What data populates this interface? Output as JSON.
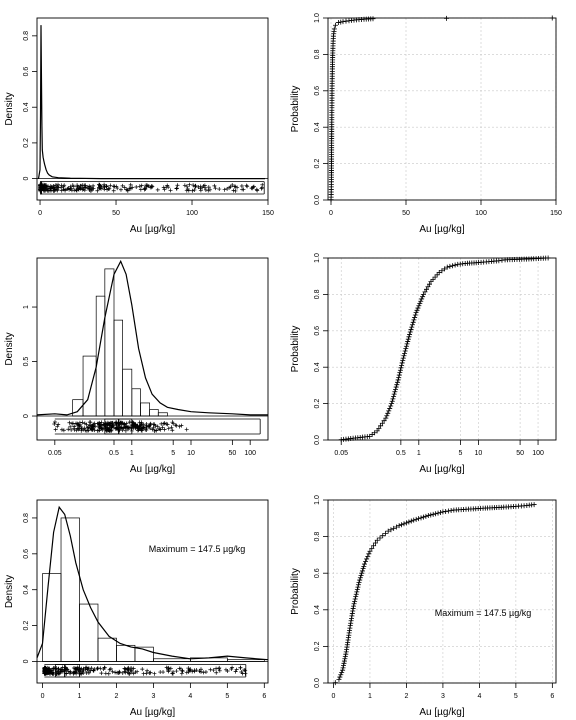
{
  "chart_data": [
    {
      "type": "histogram-density-boxplot",
      "panel": "raw-density",
      "xlabel": "Au [µg/kg]",
      "ylabel": "Density",
      "xlim": [
        -2,
        150
      ],
      "ylim": [
        -0.12,
        0.9
      ],
      "xticks": [
        0,
        50,
        100,
        150
      ],
      "yticks": [
        0,
        0.2,
        0.4,
        0.6,
        0.8
      ],
      "density_curve": {
        "x": [
          -1,
          0,
          0.3,
          0.6,
          0.9,
          1.2,
          1.5,
          2,
          2.5,
          3,
          4,
          5,
          6,
          8,
          12,
          20,
          40,
          80,
          148
        ],
        "y": [
          0,
          0.05,
          0.35,
          0.86,
          0.6,
          0.3,
          0.16,
          0.12,
          0.1,
          0.08,
          0.05,
          0.03,
          0.02,
          0.01,
          0.005,
          0.002,
          0,
          0,
          0
        ]
      },
      "boxplot": {
        "min": 0.05,
        "q1": 0.35,
        "median": 0.6,
        "q3": 1.0,
        "max": 147.5
      }
    },
    {
      "type": "ecdf",
      "panel": "raw-ecdf",
      "xlabel": "Au [µg/kg]",
      "ylabel": "Probability",
      "xlim": [
        -2,
        150
      ],
      "ylim": [
        0,
        1
      ],
      "xticks": [
        0,
        50,
        100,
        150
      ],
      "yticks": [
        0,
        0.2,
        0.4,
        0.6,
        0.8,
        1.0
      ],
      "grid": true,
      "points": [
        [
          0.05,
          0.002
        ],
        [
          0.15,
          0.03
        ],
        [
          0.25,
          0.1
        ],
        [
          0.35,
          0.2
        ],
        [
          0.45,
          0.35
        ],
        [
          0.55,
          0.48
        ],
        [
          0.7,
          0.6
        ],
        [
          0.9,
          0.72
        ],
        [
          1.2,
          0.82
        ],
        [
          1.6,
          0.9
        ],
        [
          2.2,
          0.94
        ],
        [
          3,
          0.96
        ],
        [
          5,
          0.975
        ],
        [
          8,
          0.98
        ],
        [
          12,
          0.985
        ],
        [
          17,
          0.99
        ],
        [
          22,
          0.993
        ],
        [
          28,
          0.996
        ],
        [
          77,
          0.998
        ],
        [
          147.5,
          1.0
        ]
      ]
    },
    {
      "type": "histogram-density-boxplot",
      "panel": "log-density",
      "xlabel": "Au [µg/kg]",
      "ylabel": "Density",
      "xscale": "log",
      "xlim": [
        0.025,
        200
      ],
      "ylim": [
        -0.22,
        1.45
      ],
      "xticks": [
        0.05,
        0.5,
        1,
        5,
        10,
        50,
        100
      ],
      "xtick_labels": [
        "0.05",
        "0.5",
        "1",
        "5",
        "10",
        "50",
        "100"
      ],
      "yticks": [
        0,
        0.5,
        1
      ],
      "histogram": {
        "bin_edges": [
          0.1,
          0.15,
          0.25,
          0.35,
          0.5,
          0.7,
          1.0,
          1.4,
          2.0,
          2.8,
          4.0
        ],
        "heights": [
          0.15,
          0.55,
          1.1,
          1.35,
          0.88,
          0.43,
          0.25,
          0.12,
          0.06,
          0.03
        ]
      },
      "density_curve": {
        "x": [
          0.025,
          0.05,
          0.08,
          0.12,
          0.18,
          0.25,
          0.35,
          0.5,
          0.65,
          0.8,
          1.0,
          1.3,
          1.7,
          2.2,
          3,
          4,
          6,
          10,
          20,
          50,
          100,
          200
        ],
        "y": [
          0.01,
          0.02,
          0.01,
          0.04,
          0.15,
          0.45,
          0.9,
          1.3,
          1.42,
          1.3,
          1.02,
          0.62,
          0.35,
          0.2,
          0.12,
          0.08,
          0.06,
          0.04,
          0.03,
          0.02,
          0.01,
          0.01
        ]
      },
      "boxplot": {
        "min": 0.05,
        "q1": 0.35,
        "median": 0.6,
        "q3": 1.0,
        "max": 147.5
      }
    },
    {
      "type": "ecdf",
      "panel": "log-ecdf",
      "xlabel": "Au [µg/kg]",
      "ylabel": "Probability",
      "xscale": "log",
      "xlim": [
        0.03,
        200
      ],
      "ylim": [
        0,
        1
      ],
      "xticks": [
        0.05,
        0.5,
        1,
        5,
        10,
        50,
        100
      ],
      "xtick_labels": [
        "0.05",
        "0.5",
        "1",
        "5",
        "10",
        "50",
        "100"
      ],
      "yticks": [
        0,
        0.2,
        0.4,
        0.6,
        0.8,
        1.0
      ],
      "grid": true,
      "points": [
        [
          0.05,
          0.002
        ],
        [
          0.15,
          0.02
        ],
        [
          0.2,
          0.05
        ],
        [
          0.28,
          0.12
        ],
        [
          0.35,
          0.2
        ],
        [
          0.45,
          0.33
        ],
        [
          0.55,
          0.45
        ],
        [
          0.7,
          0.58
        ],
        [
          0.9,
          0.7
        ],
        [
          1.2,
          0.8
        ],
        [
          1.6,
          0.87
        ],
        [
          2.2,
          0.92
        ],
        [
          3,
          0.95
        ],
        [
          4.5,
          0.965
        ],
        [
          6,
          0.97
        ],
        [
          10,
          0.975
        ],
        [
          15,
          0.98
        ],
        [
          22,
          0.985
        ],
        [
          28,
          0.99
        ],
        [
          77,
          0.995
        ],
        [
          147.5,
          1.0
        ]
      ]
    },
    {
      "type": "histogram-density-boxplot",
      "panel": "truncated-density",
      "xlabel": "Au [µg/kg]",
      "ylabel": "Density",
      "xlim": [
        -0.15,
        6.1
      ],
      "ylim": [
        -0.12,
        0.9
      ],
      "xticks": [
        0,
        1,
        2,
        3,
        4,
        5,
        6
      ],
      "yticks": [
        0,
        0.2,
        0.4,
        0.6,
        0.8
      ],
      "annotation": "Maximum = 147.5 µg/kg",
      "histogram": {
        "bin_edges": [
          0,
          0.5,
          1.0,
          1.5,
          2.0,
          2.5,
          3.0,
          4.0,
          5.0,
          6.0
        ],
        "heights": [
          0.49,
          0.8,
          0.32,
          0.13,
          0.09,
          0.08,
          0.015,
          0.02,
          0.01
        ]
      },
      "density_curve": {
        "x": [
          -0.15,
          0,
          0.15,
          0.3,
          0.45,
          0.6,
          0.75,
          0.9,
          1.1,
          1.3,
          1.5,
          1.8,
          2.1,
          2.4,
          2.7,
          3.0,
          3.5,
          4.0,
          4.5,
          5.0,
          5.5,
          6.1
        ],
        "y": [
          0.02,
          0.1,
          0.42,
          0.72,
          0.86,
          0.82,
          0.7,
          0.55,
          0.4,
          0.3,
          0.22,
          0.14,
          0.1,
          0.08,
          0.07,
          0.05,
          0.03,
          0.015,
          0.02,
          0.03,
          0.02,
          0.01
        ]
      },
      "boxplot": {
        "min": 0.05,
        "q1": 0.35,
        "median": 0.6,
        "q3": 1.0,
        "max": 5.5
      }
    },
    {
      "type": "ecdf",
      "panel": "truncated-ecdf",
      "xlabel": "Au [µg/kg]",
      "ylabel": "Probability",
      "xlim": [
        -0.15,
        6.1
      ],
      "ylim": [
        0,
        1
      ],
      "xticks": [
        0,
        1,
        2,
        3,
        4,
        5,
        6
      ],
      "yticks": [
        0,
        0.2,
        0.4,
        0.6,
        0.8,
        1.0
      ],
      "grid": true,
      "annotation": "Maximum = 147.5 µg/kg",
      "points": [
        [
          0.05,
          0.002
        ],
        [
          0.15,
          0.02
        ],
        [
          0.25,
          0.07
        ],
        [
          0.35,
          0.17
        ],
        [
          0.45,
          0.3
        ],
        [
          0.55,
          0.42
        ],
        [
          0.7,
          0.55
        ],
        [
          0.85,
          0.65
        ],
        [
          1.0,
          0.72
        ],
        [
          1.2,
          0.78
        ],
        [
          1.5,
          0.83
        ],
        [
          1.8,
          0.86
        ],
        [
          2.2,
          0.89
        ],
        [
          2.6,
          0.915
        ],
        [
          3.0,
          0.935
        ],
        [
          3.3,
          0.945
        ],
        [
          3.7,
          0.95
        ],
        [
          4.1,
          0.955
        ],
        [
          4.6,
          0.96
        ],
        [
          5.0,
          0.965
        ],
        [
          5.3,
          0.97
        ],
        [
          5.5,
          0.975
        ]
      ]
    }
  ]
}
